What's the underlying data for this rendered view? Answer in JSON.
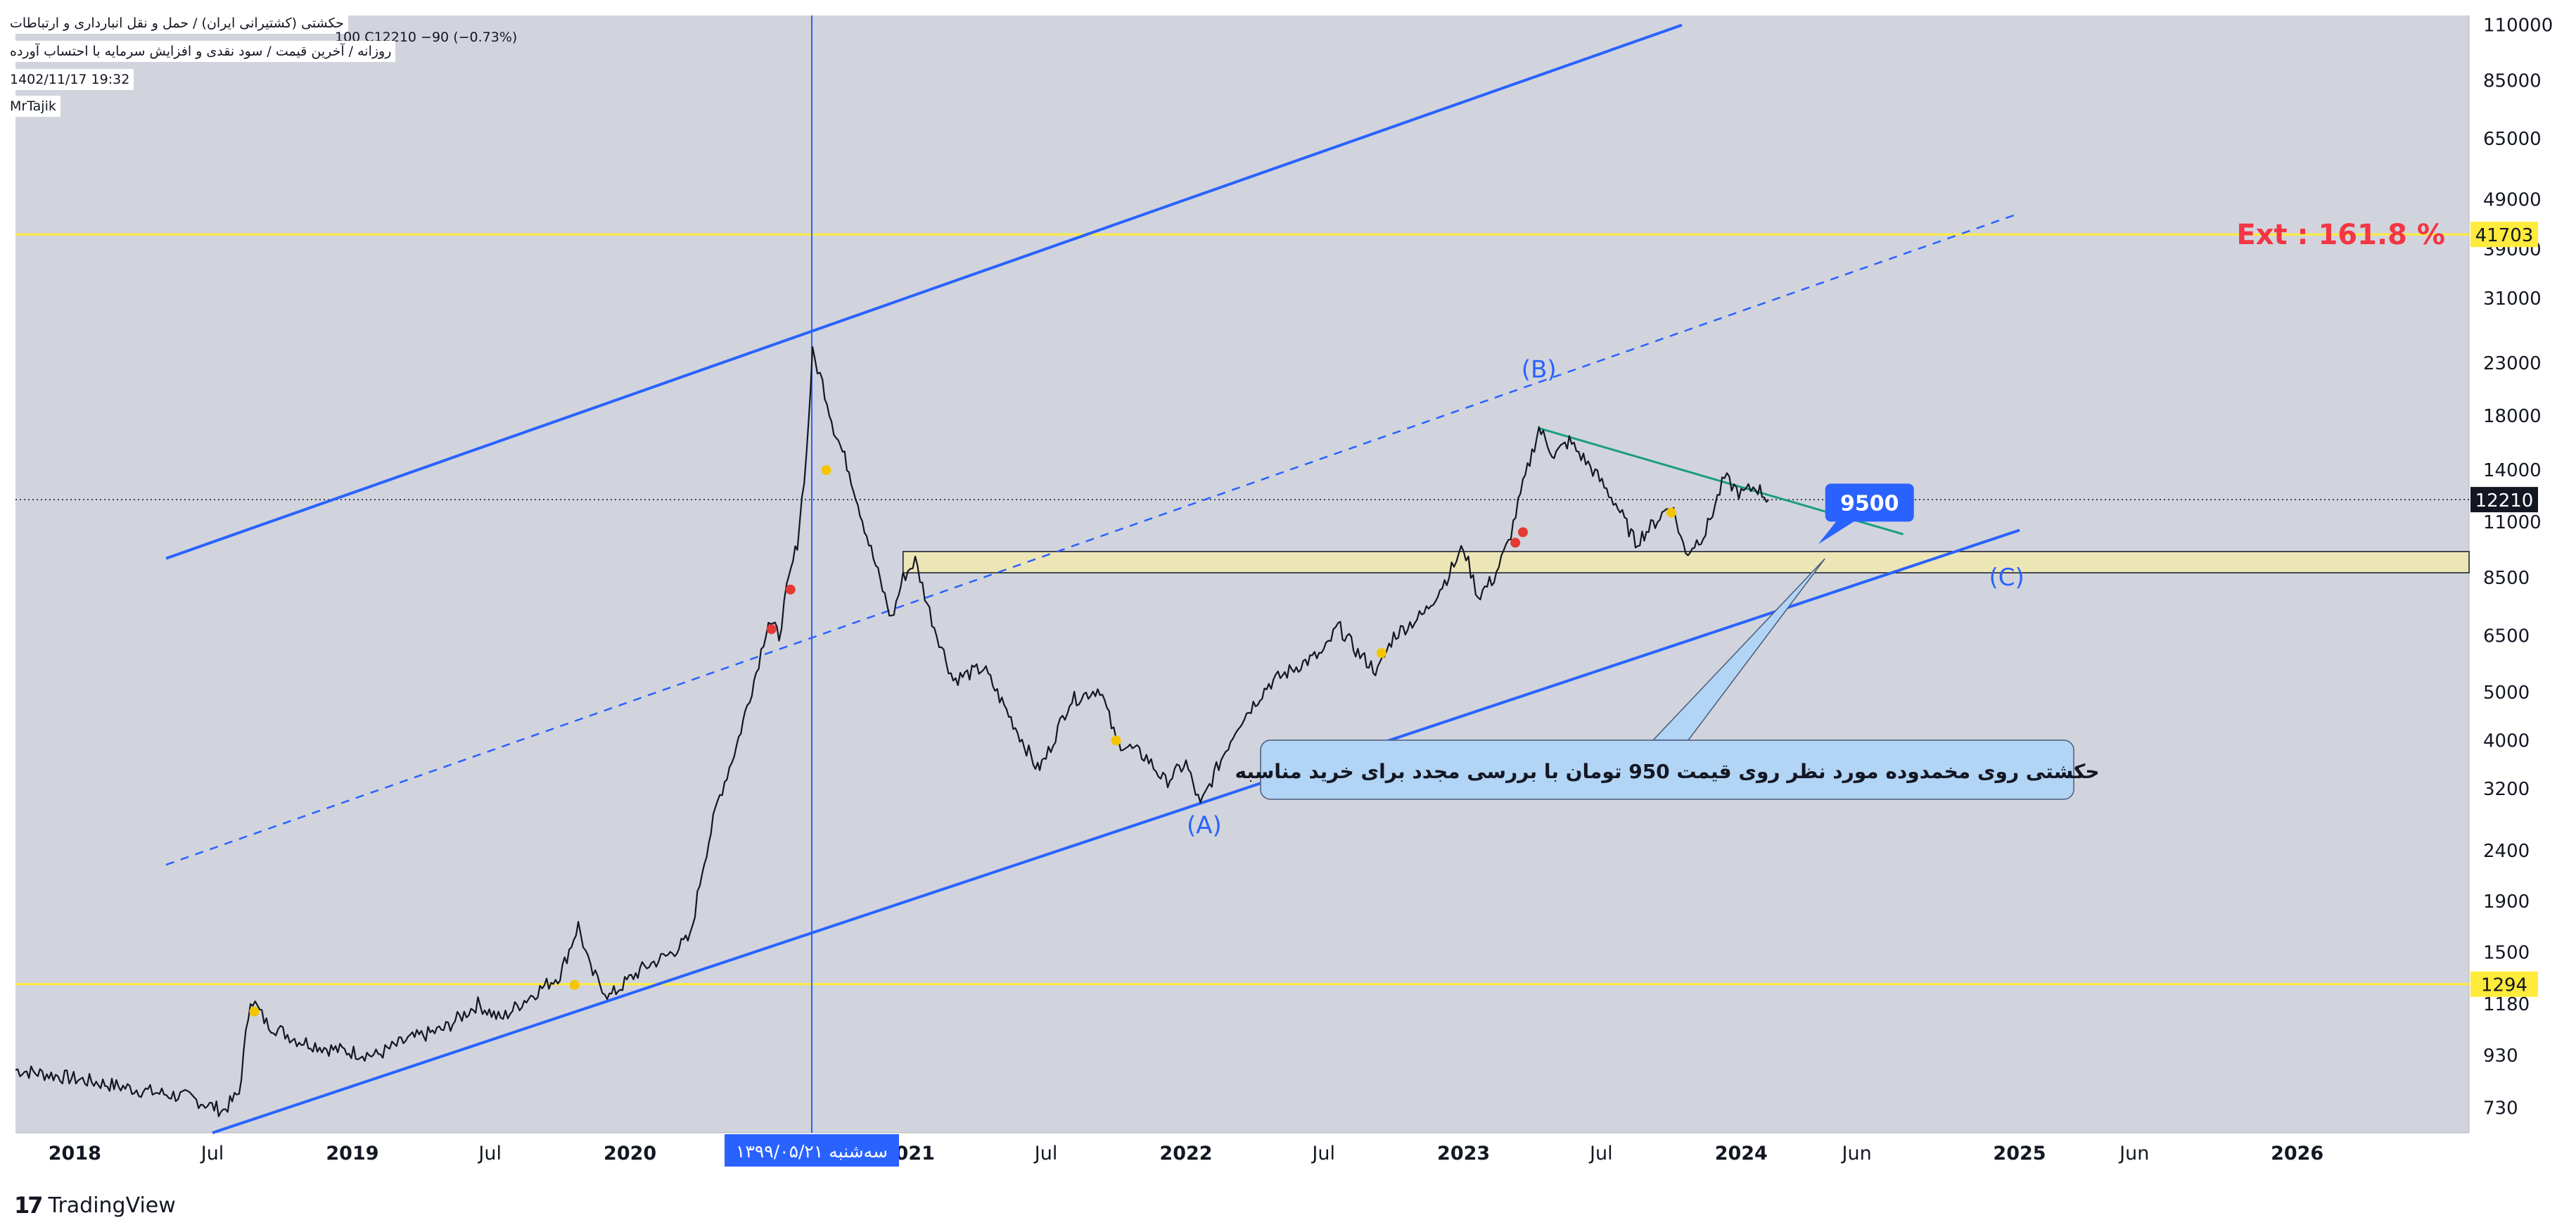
{
  "header": {
    "symbol_title": "حکشتی (کشتیرانی ایران) / حمل و نقل انبارداری و ارتباطات",
    "subtitle": "روزانه / آخرین قیمت / سود نقدی و افزایش سرمایه با احتساب آورده",
    "ohlc": "100  C12210  −90 (−0.73%)",
    "date": "1402/11/17 19:32",
    "author": "MrTajik"
  },
  "footer": {
    "brand": "TradingView",
    "brand_logo": "17"
  },
  "colors": {
    "background": "#d1d4dc",
    "price": "#131722",
    "channel": "#2962ff",
    "fib": "#ffeb3b",
    "trend": "#1b9c85",
    "ext_text": "#f23645",
    "zone": "#ece5b6",
    "callout": "#b2d4f5",
    "marker_red": "#e53935",
    "marker_yellow": "#f5c400"
  },
  "chart_data": {
    "type": "line",
    "y_scale": "log",
    "ylim": [
      650,
      115000
    ],
    "xlim": [
      "2017-10-15",
      "2026-08-15"
    ],
    "y_ticks": [
      730,
      930,
      1180,
      1500,
      1900,
      2400,
      3200,
      4000,
      5000,
      6500,
      8500,
      11000,
      14000,
      18000,
      23000,
      31000,
      39000,
      49000,
      65000,
      85000,
      110000
    ],
    "x_ticks": [
      {
        "date": "2018-01-01",
        "label": "2018"
      },
      {
        "date": "2018-07-01",
        "label": "Jul"
      },
      {
        "date": "2019-01-01",
        "label": "2019"
      },
      {
        "date": "2019-07-01",
        "label": "Jul"
      },
      {
        "date": "2020-01-01",
        "label": "2020"
      },
      {
        "date": "2021-01-01",
        "label": "2021"
      },
      {
        "date": "2021-07-01",
        "label": "Jul"
      },
      {
        "date": "2022-01-01",
        "label": "2022"
      },
      {
        "date": "2022-07-01",
        "label": "Jul"
      },
      {
        "date": "2023-01-01",
        "label": "2023"
      },
      {
        "date": "2023-07-01",
        "label": "Jul"
      },
      {
        "date": "2024-01-01",
        "label": "2024"
      },
      {
        "date": "2024-06-01",
        "label": "Jun"
      },
      {
        "date": "2025-01-01",
        "label": "2025"
      },
      {
        "date": "2025-06-01",
        "label": "Jun"
      },
      {
        "date": "2026-01-01",
        "label": "2026"
      }
    ],
    "series": [
      {
        "values": [
          [
            "2017-10-15",
            870
          ],
          [
            "2017-12-01",
            850
          ],
          [
            "2018-02-01",
            820
          ],
          [
            "2018-04-01",
            790
          ],
          [
            "2018-06-01",
            765
          ],
          [
            "2018-07-15",
            720
          ],
          [
            "2018-08-05",
            780
          ],
          [
            "2018-08-20",
            1220
          ],
          [
            "2018-09-10",
            1080
          ],
          [
            "2018-10-20",
            1000
          ],
          [
            "2018-12-01",
            960
          ],
          [
            "2019-02-01",
            930
          ],
          [
            "2019-03-15",
            1000
          ],
          [
            "2019-05-01",
            1050
          ],
          [
            "2019-06-15",
            1180
          ],
          [
            "2019-07-15",
            1100
          ],
          [
            "2019-08-15",
            1200
          ],
          [
            "2019-10-01",
            1350
          ],
          [
            "2019-10-25",
            1700
          ],
          [
            "2019-11-10",
            1380
          ],
          [
            "2019-12-05",
            1220
          ],
          [
            "2019-12-25",
            1300
          ],
          [
            "2020-01-20",
            1400
          ],
          [
            "2020-02-20",
            1480
          ],
          [
            "2020-03-20",
            1600
          ],
          [
            "2020-04-05",
            2200
          ],
          [
            "2020-04-25",
            3000
          ],
          [
            "2020-05-20",
            3900
          ],
          [
            "2020-06-15",
            5500
          ],
          [
            "2020-07-01",
            7000
          ],
          [
            "2020-07-15",
            6500
          ],
          [
            "2020-07-25",
            8000
          ],
          [
            "2020-08-08",
            10000
          ],
          [
            "2020-08-20",
            15000
          ],
          [
            "2020-08-28",
            24000
          ],
          [
            "2020-09-10",
            21000
          ],
          [
            "2020-09-25",
            17000
          ],
          [
            "2020-10-15",
            14000
          ],
          [
            "2020-11-10",
            10000
          ],
          [
            "2020-12-10",
            7000
          ],
          [
            "2020-12-25",
            8500
          ],
          [
            "2021-01-10",
            9200
          ],
          [
            "2021-02-01",
            7000
          ],
          [
            "2021-03-01",
            5300
          ],
          [
            "2021-04-10",
            5600
          ],
          [
            "2021-05-10",
            4600
          ],
          [
            "2021-06-20",
            3500
          ],
          [
            "2021-07-01",
            3700
          ],
          [
            "2021-08-01",
            4800
          ],
          [
            "2021-09-10",
            5100
          ],
          [
            "2021-10-01",
            4000
          ],
          [
            "2021-11-10",
            3700
          ],
          [
            "2021-12-05",
            3300
          ],
          [
            "2022-01-01",
            3600
          ],
          [
            "2022-01-20",
            2950
          ],
          [
            "2022-02-10",
            3500
          ],
          [
            "2022-03-10",
            4300
          ],
          [
            "2022-04-20",
            5200
          ],
          [
            "2022-06-01",
            5700
          ],
          [
            "2022-07-01",
            6000
          ],
          [
            "2022-07-20",
            6800
          ],
          [
            "2022-08-15",
            6000
          ],
          [
            "2022-09-10",
            5500
          ],
          [
            "2022-10-01",
            6500
          ],
          [
            "2022-11-10",
            7200
          ],
          [
            "2022-12-10",
            8500
          ],
          [
            "2023-01-01",
            9800
          ],
          [
            "2023-01-20",
            7800
          ],
          [
            "2023-02-10",
            8500
          ],
          [
            "2023-03-01",
            10000
          ],
          [
            "2023-03-20",
            13000
          ],
          [
            "2023-04-10",
            17000
          ],
          [
            "2023-04-30",
            15000
          ],
          [
            "2023-05-20",
            16000
          ],
          [
            "2023-06-20",
            14000
          ],
          [
            "2023-07-20",
            12000
          ],
          [
            "2023-08-15",
            10000
          ],
          [
            "2023-09-10",
            11000
          ],
          [
            "2023-10-01",
            12000
          ],
          [
            "2023-10-20",
            9500
          ],
          [
            "2023-11-15",
            10500
          ],
          [
            "2023-12-10",
            13500
          ],
          [
            "2024-01-01",
            12500
          ],
          [
            "2024-01-20",
            13000
          ],
          [
            "2024-02-06",
            12210
          ]
        ]
      }
    ],
    "horizontal_lines": [
      {
        "price": 41703,
        "label": "41703",
        "text": "Ext  : 161.8 %"
      },
      {
        "price": 1294,
        "label": "1294"
      }
    ],
    "current_price": {
      "price": 12210,
      "label": "12210"
    },
    "support_zone": {
      "low": 8700,
      "high": 9600,
      "from": "2020-12-25"
    },
    "channel_upper": [
      [
        "2018-05-01",
        9300
      ],
      [
        "2023-10-15",
        110000
      ]
    ],
    "channel_lower": [
      [
        "2018-07-01",
        650
      ],
      [
        "2025-01-01",
        10600
      ]
    ],
    "channel_mid": [
      [
        "2018-05-01",
        2250
      ],
      [
        "2025-01-01",
        46000
      ]
    ],
    "trendline": [
      [
        "2023-04-10",
        17000
      ],
      [
        "2024-08-01",
        10400
      ]
    ],
    "vertical_line": {
      "date": "2020-08-27",
      "label": "سه‌شنبه ۱۳۹۹/۰۵/۲۱"
    },
    "wave_labels": [
      {
        "text": "(A)",
        "date": "2022-01-25",
        "price": 2600
      },
      {
        "text": "(B)",
        "date": "2023-04-10",
        "price": 21500
      },
      {
        "text": "(C)",
        "date": "2024-12-15",
        "price": 8200
      }
    ],
    "markers_red": [
      [
        "2020-07-05",
        6700
      ],
      [
        "2020-07-30",
        8050
      ],
      [
        "2023-03-10",
        10000
      ],
      [
        "2023-03-20",
        10500
      ]
    ],
    "markers_yellow": [
      [
        "2018-08-25",
        1140
      ],
      [
        "2019-10-20",
        1290
      ],
      [
        "2020-09-15",
        14000
      ],
      [
        "2021-10-01",
        4000
      ],
      [
        "2022-09-15",
        6000
      ],
      [
        "2023-10-01",
        11500
      ]
    ],
    "price_label_9500": {
      "text": "9500",
      "date": "2024-06-15",
      "price": 12000
    },
    "callout": {
      "text": "حکشتی روی مخمدوده مورد نظر روی قیمت 950 تومان با بررسی مجدد برای خرید مناسبه",
      "target_date": "2024-04-20"
    }
  }
}
